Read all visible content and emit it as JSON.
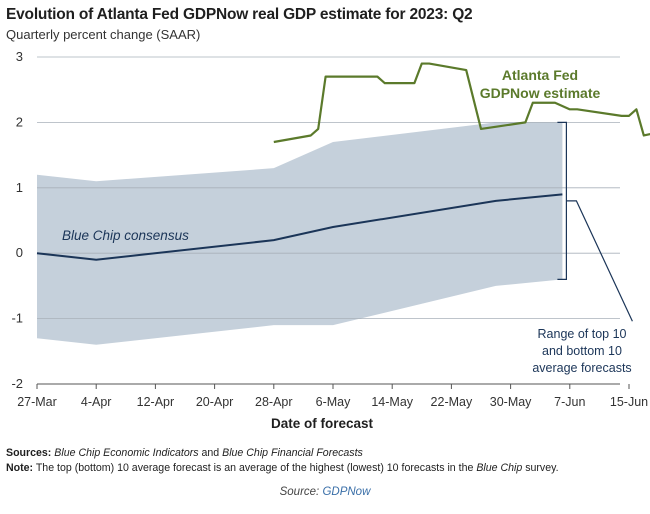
{
  "title": "Evolution of Atlanta Fed GDPNow real GDP estimate for 2023: Q2",
  "subtitle": "Quarterly percent change (SAAR)",
  "footnotes": {
    "sources_label": "Sources:",
    "sources_italic_1": "Blue Chip Economic Indicators",
    "sources_and": " and ",
    "sources_italic_2": "Blue Chip Financial Forecasts",
    "note_label": "Note:",
    "note_text_1": " The top (bottom) 10 average forecast is an average of the highest (lowest) 10 forecasts in the ",
    "note_italic": "Blue Chip",
    "note_text_2": " survey."
  },
  "source": {
    "label": "Source:",
    "link": "GDPNow"
  },
  "chart_data": {
    "type": "line",
    "xlabel": "Date of forecast",
    "ylabel": "",
    "ylim": [
      -2,
      3
    ],
    "yticks": [
      "3",
      "2",
      "1",
      "0",
      "-1",
      "-2"
    ],
    "xticks": [
      "27-Mar",
      "4-Apr",
      "12-Apr",
      "20-Apr",
      "28-Apr",
      "6-May",
      "14-May",
      "22-May",
      "30-May",
      "7-Jun",
      "15-Jun"
    ],
    "grid": true,
    "colors": {
      "gdpnow": "#5b7a2b",
      "bluechip": "#1b3558",
      "range": "#c5d0db",
      "annotation": "#1b3558"
    },
    "series": [
      {
        "name": "Atlanta Fed GDPNow estimate",
        "points": [
          [
            "28-Apr",
            1.7
          ],
          [
            "3-May",
            1.8
          ],
          [
            "4-May",
            1.9
          ],
          [
            "5-May",
            2.7
          ],
          [
            "10-May",
            2.7
          ],
          [
            "12-May",
            2.7
          ],
          [
            "13-May",
            2.6
          ],
          [
            "17-May",
            2.6
          ],
          [
            "18-May",
            2.9
          ],
          [
            "19-May",
            2.9
          ],
          [
            "24-May",
            2.8
          ],
          [
            "26-May",
            1.9
          ],
          [
            "1-Jun",
            2.0
          ],
          [
            "2-Jun",
            2.3
          ],
          [
            "5-Jun",
            2.3
          ],
          [
            "7-Jun",
            2.2
          ],
          [
            "8-Jun",
            2.2
          ],
          [
            "14-Jun",
            2.1
          ],
          [
            "15-Jun",
            2.1
          ],
          [
            "16-Jun",
            2.2
          ],
          [
            "17-Jun",
            1.8
          ],
          [
            "21-Jun",
            1.9
          ]
        ]
      },
      {
        "name": "Blue Chip consensus",
        "points": [
          [
            "27-Mar",
            0.0
          ],
          [
            "4-Apr",
            -0.1
          ],
          [
            "28-Apr",
            0.2
          ],
          [
            "6-May",
            0.4
          ],
          [
            "28-May",
            0.8
          ],
          [
            "6-Jun",
            0.9
          ]
        ]
      },
      {
        "name": "Range of top 10 and bottom 10 average forecasts",
        "band_top": [
          [
            "27-Mar",
            1.2
          ],
          [
            "4-Apr",
            1.1
          ],
          [
            "28-Apr",
            1.3
          ],
          [
            "6-May",
            1.7
          ],
          [
            "28-May",
            2.0
          ],
          [
            "6-Jun",
            2.0
          ]
        ],
        "band_bottom": [
          [
            "27-Mar",
            -1.3
          ],
          [
            "4-Apr",
            -1.4
          ],
          [
            "28-Apr",
            -1.1
          ],
          [
            "6-May",
            -1.1
          ],
          [
            "28-May",
            -0.5
          ],
          [
            "6-Jun",
            -0.4
          ]
        ]
      }
    ],
    "annotations": {
      "gdpnow_label": [
        "Atlanta Fed",
        "GDPNow estimate"
      ],
      "bluechip_label": "Blue Chip consensus",
      "range_label": [
        "Range of top 10",
        "and bottom 10",
        "average forecasts"
      ]
    }
  }
}
